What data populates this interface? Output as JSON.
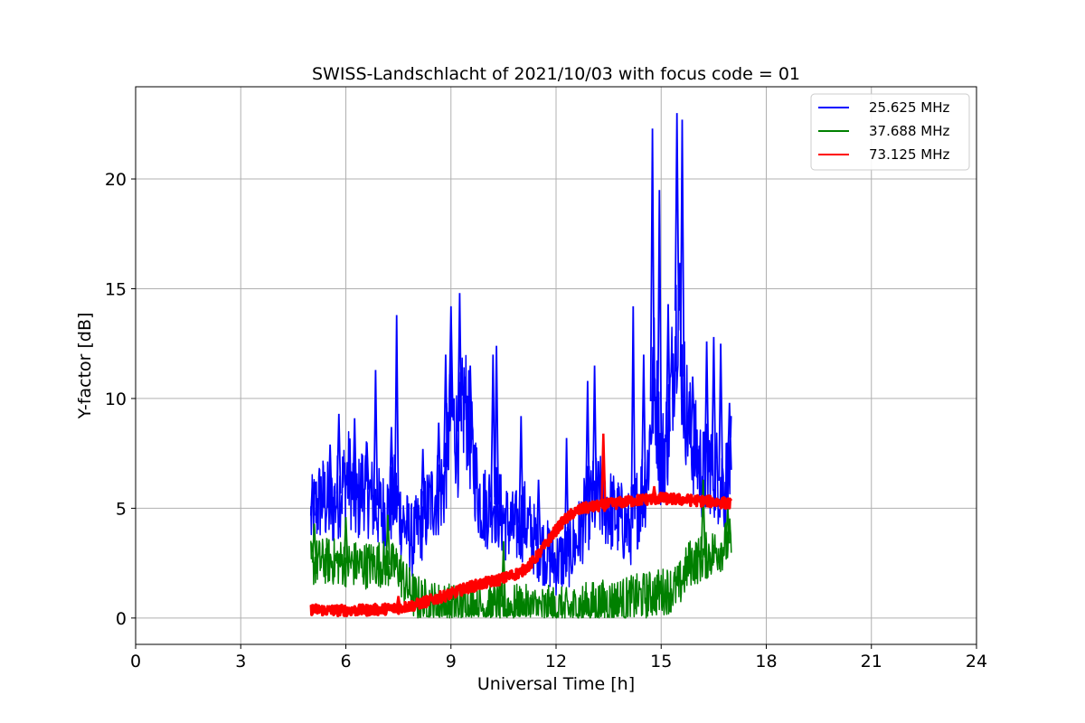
{
  "chart_data": {
    "type": "line",
    "title": "SWISS-Landschlacht of 2021/10/03 with focus code = 01",
    "xlabel": "Universal Time [h]",
    "ylabel": "Y-factor [dB]",
    "xlim": [
      0,
      24
    ],
    "ylim": [
      -1.2,
      24.2
    ],
    "xticks": [
      0,
      3,
      6,
      9,
      12,
      15,
      18,
      21,
      24
    ],
    "yticks": [
      0,
      5,
      10,
      15,
      20
    ],
    "grid": true,
    "legend_position": "top-right",
    "series": [
      {
        "name": "25.625 MHz",
        "color": "#0000ff",
        "x": [
          5.0,
          5.3,
          5.6,
          5.9,
          6.1,
          6.3,
          6.5,
          6.7,
          6.9,
          7.1,
          7.4,
          7.6,
          7.9,
          8.2,
          8.5,
          8.8,
          9.0,
          9.2,
          9.4,
          9.6,
          9.8,
          10.0,
          10.2,
          10.5,
          10.8,
          11.1,
          11.4,
          11.7,
          12.0,
          12.3,
          12.6,
          12.9,
          13.2,
          13.5,
          13.8,
          14.1,
          14.4,
          14.6,
          14.8,
          15.0,
          15.2,
          15.4,
          15.5,
          15.6,
          15.8,
          16.0,
          16.2,
          16.4,
          16.6,
          16.8,
          17.0
        ],
        "y": [
          4.5,
          5.5,
          5.0,
          6.0,
          6.5,
          5.0,
          6.2,
          5.5,
          5.0,
          4.8,
          5.5,
          4.5,
          3.5,
          4.5,
          5.5,
          6.0,
          9.5,
          8.0,
          10.0,
          7.5,
          5.5,
          5.0,
          5.5,
          4.5,
          4.0,
          4.5,
          3.5,
          3.0,
          2.5,
          2.8,
          3.5,
          5.0,
          5.5,
          5.0,
          4.5,
          4.0,
          5.5,
          6.5,
          11.0,
          7.0,
          8.5,
          13.0,
          15.0,
          11.0,
          8.5,
          7.5,
          6.5,
          7.0,
          6.5,
          6.0,
          7.0
        ],
        "spikes": [
          {
            "x": 5.05,
            "y": 6.2
          },
          {
            "x": 5.55,
            "y": 7.9
          },
          {
            "x": 5.8,
            "y": 9.3
          },
          {
            "x": 6.25,
            "y": 9.1
          },
          {
            "x": 6.6,
            "y": 8.0
          },
          {
            "x": 6.85,
            "y": 11.3
          },
          {
            "x": 7.3,
            "y": 8.7
          },
          {
            "x": 7.45,
            "y": 13.8
          },
          {
            "x": 8.2,
            "y": 7.7
          },
          {
            "x": 8.65,
            "y": 8.9
          },
          {
            "x": 8.85,
            "y": 12.0
          },
          {
            "x": 9.0,
            "y": 14.2
          },
          {
            "x": 9.25,
            "y": 14.8
          },
          {
            "x": 9.55,
            "y": 11.5
          },
          {
            "x": 10.2,
            "y": 12.0
          },
          {
            "x": 10.3,
            "y": 12.4
          },
          {
            "x": 11.0,
            "y": 9.2
          },
          {
            "x": 11.5,
            "y": 6.3
          },
          {
            "x": 12.3,
            "y": 8.2
          },
          {
            "x": 12.9,
            "y": 10.8
          },
          {
            "x": 13.1,
            "y": 11.5
          },
          {
            "x": 14.2,
            "y": 14.2
          },
          {
            "x": 14.5,
            "y": 12.0
          },
          {
            "x": 14.75,
            "y": 22.3
          },
          {
            "x": 14.95,
            "y": 19.5
          },
          {
            "x": 15.2,
            "y": 14.3
          },
          {
            "x": 15.45,
            "y": 23.0
          },
          {
            "x": 15.6,
            "y": 22.7
          },
          {
            "x": 15.9,
            "y": 11.0
          },
          {
            "x": 16.3,
            "y": 12.6
          },
          {
            "x": 16.5,
            "y": 12.8
          },
          {
            "x": 16.7,
            "y": 12.5
          },
          {
            "x": 16.95,
            "y": 9.8
          }
        ]
      },
      {
        "name": "37.688 MHz",
        "color": "#008000",
        "x": [
          5.0,
          5.5,
          6.0,
          6.5,
          7.0,
          7.5,
          7.7,
          8.0,
          8.5,
          9.0,
          9.5,
          10.0,
          10.5,
          11.0,
          11.5,
          12.0,
          12.3,
          12.7,
          13.0,
          13.5,
          14.0,
          14.5,
          15.0,
          15.5,
          15.8,
          16.0,
          16.5,
          17.0
        ],
        "y": [
          2.5,
          2.6,
          2.5,
          2.4,
          2.5,
          2.3,
          1.5,
          0.9,
          0.6,
          0.5,
          0.5,
          0.5,
          0.5,
          0.45,
          0.4,
          0.4,
          0.3,
          0.5,
          0.6,
          0.7,
          0.8,
          1.0,
          1.2,
          1.4,
          2.5,
          2.6,
          3.0,
          3.5
        ],
        "spikes": [
          {
            "x": 5.1,
            "y": 4.3
          },
          {
            "x": 6.0,
            "y": 4.6
          },
          {
            "x": 7.2,
            "y": 4.7
          },
          {
            "x": 10.5,
            "y": 3.5
          },
          {
            "x": 16.2,
            "y": 6.3
          },
          {
            "x": 16.9,
            "y": 5.0
          }
        ]
      },
      {
        "name": "73.125 MHz",
        "color": "#ff0000",
        "x": [
          5.0,
          5.5,
          6.0,
          6.5,
          7.0,
          7.5,
          8.0,
          8.5,
          9.0,
          9.5,
          10.0,
          10.5,
          11.0,
          11.3,
          11.6,
          11.9,
          12.2,
          12.5,
          12.8,
          13.2,
          13.6,
          14.0,
          14.5,
          15.0,
          15.5,
          16.0,
          16.5,
          17.0
        ],
        "y": [
          0.4,
          0.35,
          0.35,
          0.35,
          0.4,
          0.45,
          0.6,
          0.85,
          1.1,
          1.4,
          1.6,
          1.8,
          2.1,
          2.5,
          3.1,
          3.8,
          4.4,
          4.8,
          5.0,
          5.1,
          5.2,
          5.3,
          5.4,
          5.45,
          5.4,
          5.35,
          5.3,
          5.2
        ],
        "spikes": [
          {
            "x": 7.5,
            "y": 1.0
          },
          {
            "x": 13.35,
            "y": 8.4
          },
          {
            "x": 14.8,
            "y": 6.0
          }
        ]
      }
    ]
  }
}
